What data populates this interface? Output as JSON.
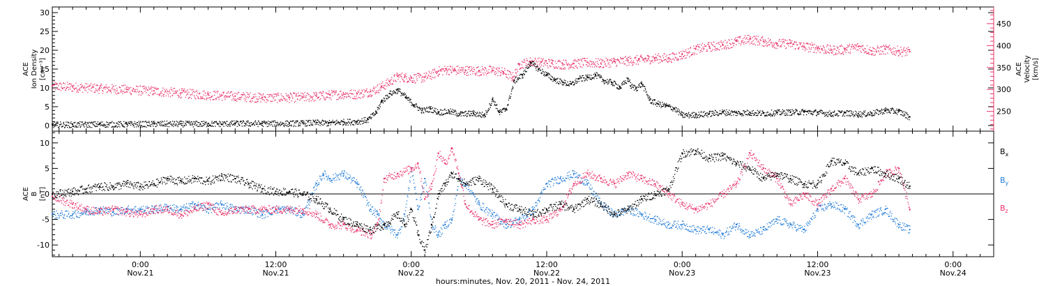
{
  "colors": {
    "axes": "#000000",
    "density": "#000000",
    "velocity": "#e8336a",
    "bx": "#000000",
    "by": "#1f7ad6",
    "bz": "#e8336a"
  },
  "xlabel": "hours:minutes, Nov. 20, 2011 - Nov. 24, 2011",
  "chart_data": [
    {
      "type": "scatter",
      "panel": "top",
      "x_range_hours": [
        -6.5,
        63.0
      ],
      "x_ticks": [
        {
          "t": 0,
          "time": "0:00",
          "date": "Nov.21"
        },
        {
          "t": 10,
          "time": "12:00",
          "date": "Nov.21"
        },
        {
          "t": 20,
          "time": "0:00",
          "date": "Nov.22"
        },
        {
          "t": 30,
          "time": "12:00",
          "date": "Nov.22"
        },
        {
          "t": 40,
          "time": "0:00",
          "date": "Nov.23"
        },
        {
          "t": 50,
          "time": "12:00",
          "date": "Nov.23"
        },
        {
          "t": 60,
          "time": "0:00",
          "date": "Nov.24"
        }
      ],
      "left_axis": {
        "label_lines": [
          "ACE",
          "Ion Density",
          "[cm⁻³]"
        ],
        "ylim": [
          -1.5,
          31.5
        ],
        "ticks": [
          0,
          5,
          10,
          15,
          20,
          25,
          30
        ],
        "tick_labels": [
          "0",
          "5",
          "10",
          "15",
          "20",
          "25",
          "30"
        ]
      },
      "right_axis": {
        "label_lines": [
          "ACE",
          "Velocity",
          "[km/s]"
        ],
        "ylim": [
          205,
          488
        ],
        "ticks": [
          250,
          300,
          350,
          400,
          450
        ],
        "tick_labels": [
          "250",
          "300",
          "350",
          "400",
          "450"
        ]
      },
      "series": [
        {
          "key": "density",
          "x": [
            -6.5,
            -5,
            -3,
            -1,
            1,
            3,
            5,
            7,
            9,
            11,
            12,
            13,
            13.9,
            14.1,
            15,
            16,
            16.8,
            17.4,
            17.8,
            18.4,
            19,
            19.6,
            20.2,
            20.8,
            21.4,
            22,
            22.8,
            23.6,
            24.6,
            25.4,
            26,
            26.5,
            27,
            27.6,
            28.2,
            28.8,
            29.4,
            30,
            30.6,
            31.2,
            31.8,
            32.4,
            33,
            33.6,
            34.2,
            34.8,
            35.4,
            36,
            36.2,
            36.6,
            37,
            37.6,
            38.2,
            38.8,
            39.4,
            40,
            41,
            42,
            43,
            44,
            45,
            46,
            47,
            48,
            49,
            50,
            51,
            52,
            53,
            54,
            55,
            56,
            56.8
          ],
          "y": [
            0.3,
            0.3,
            0.4,
            0.4,
            0.5,
            0.5,
            0.5,
            0.6,
            0.6,
            0.6,
            0.7,
            0.8,
            0.7,
            0.8,
            1.0,
            1.1,
            1.6,
            3.6,
            6.5,
            8.5,
            9.5,
            7.5,
            5.5,
            4.0,
            4.5,
            3.6,
            3.8,
            3.1,
            3.3,
            2.8,
            7.0,
            3.5,
            4.5,
            12.0,
            13.5,
            16.8,
            15.0,
            13.5,
            12.2,
            11.5,
            11.0,
            12.5,
            12.8,
            13.5,
            12.0,
            11.5,
            10.2,
            12.5,
            10.5,
            10.0,
            11.2,
            6.8,
            5.8,
            5.3,
            4.6,
            2.8,
            2.9,
            3.2,
            3.6,
            3.4,
            3.5,
            3.3,
            3.5,
            3.6,
            3.7,
            3.5,
            3.2,
            3.4,
            3.1,
            3.3,
            4.1,
            3.8,
            2.3
          ]
        },
        {
          "key": "velocity",
          "x": [
            -6.5,
            -5,
            -3,
            -1,
            1,
            3,
            5,
            7,
            9,
            11,
            12,
            13,
            14,
            15,
            16,
            17,
            17.8,
            18.4,
            19,
            19.5,
            20,
            21,
            22,
            22.6,
            23.2,
            24,
            25,
            26,
            26.8,
            27.5,
            28,
            28.8,
            29.6,
            30.4,
            31.2,
            32,
            33,
            34,
            35,
            36,
            36.8,
            37.5,
            38,
            39,
            40,
            41,
            42,
            43,
            44,
            45,
            46,
            47,
            48,
            49,
            50,
            51,
            52,
            53,
            54,
            55,
            56,
            56.8
          ],
          "y": [
            308,
            306,
            303,
            300,
            297,
            292,
            288,
            285,
            282,
            282,
            283,
            285,
            288,
            290,
            290,
            296,
            307,
            318,
            330,
            328,
            326,
            328,
            342,
            346,
            344,
            344,
            343,
            344,
            340,
            328,
            358,
            364,
            362,
            360,
            358,
            359,
            362,
            360,
            364,
            366,
            368,
            370,
            372,
            372,
            380,
            392,
            398,
            402,
            410,
            415,
            410,
            405,
            405,
            398,
            395,
            390,
            392,
            398,
            388,
            392,
            388,
            386
          ]
        }
      ]
    },
    {
      "type": "scatter",
      "panel": "bottom",
      "x_range_hours": [
        -6.5,
        63.0
      ],
      "x_ticks": [
        {
          "t": 0,
          "time": "0:00",
          "date": "Nov.21"
        },
        {
          "t": 10,
          "time": "12:00",
          "date": "Nov.21"
        },
        {
          "t": 20,
          "time": "0:00",
          "date": "Nov.22"
        },
        {
          "t": 30,
          "time": "12:00",
          "date": "Nov.22"
        },
        {
          "t": 40,
          "time": "0:00",
          "date": "Nov.23"
        },
        {
          "t": 50,
          "time": "12:00",
          "date": "Nov.23"
        },
        {
          "t": 60,
          "time": "0:00",
          "date": "Nov.24"
        }
      ],
      "left_axis": {
        "label_lines": [
          "ACE",
          "B",
          "[nT]"
        ],
        "ylim": [
          -12.3,
          12.3
        ],
        "ticks": [
          -10,
          -5,
          0,
          5,
          10
        ],
        "tick_labels": [
          "-10",
          "-5",
          "0",
          "5",
          "10"
        ]
      },
      "zero_line": 0,
      "legend": [
        {
          "key": "bx",
          "base": "B",
          "sub": "x"
        },
        {
          "key": "by",
          "base": "B",
          "sub": "y"
        },
        {
          "key": "bz",
          "base": "B",
          "sub": "z"
        }
      ],
      "series": [
        {
          "key": "bx",
          "x": [
            -6.5,
            -5,
            -4,
            -3,
            -2,
            -1,
            0,
            1,
            2,
            3,
            4,
            5,
            6,
            7,
            8,
            9,
            10,
            11,
            12,
            13,
            14,
            15,
            16,
            17,
            18,
            19,
            19.5,
            20,
            20.5,
            21,
            21.5,
            22,
            22.5,
            23,
            23.5,
            24,
            25,
            26,
            27,
            28,
            29,
            30,
            31,
            32,
            33,
            34,
            35,
            36,
            37,
            38,
            39,
            40,
            41,
            42,
            43,
            44,
            45,
            46,
            47,
            48,
            49,
            50,
            51,
            52,
            53,
            54,
            55,
            56,
            56.8
          ],
          "y": [
            0,
            0.5,
            1,
            1.5,
            1.5,
            2,
            1.5,
            2,
            3,
            2.5,
            3,
            2.5,
            3.5,
            3,
            2,
            1,
            0.5,
            0.5,
            0,
            -1,
            -3,
            -5,
            -6,
            -7,
            -6,
            -4,
            -6,
            -3,
            -8,
            -11,
            -6,
            0,
            2,
            4,
            3,
            2,
            3,
            1,
            -2,
            -3,
            -4,
            -3,
            -2,
            -3,
            -1,
            -2,
            -4,
            -3,
            -1,
            0,
            1,
            8,
            8.5,
            7,
            7.5,
            6,
            5,
            3,
            4,
            3,
            2,
            2,
            6.5,
            6,
            4,
            5,
            4,
            3,
            1.5
          ]
        },
        {
          "key": "by",
          "x": [
            -6.5,
            -5,
            -4,
            -3,
            -2,
            -1,
            0,
            1,
            2,
            3,
            4,
            5,
            6,
            7,
            8,
            9,
            10,
            11,
            12,
            13,
            13.5,
            14,
            15,
            16,
            17,
            17.5,
            18,
            19,
            19.5,
            20,
            20.5,
            21,
            21.5,
            22,
            22.5,
            23,
            23.5,
            24,
            25,
            26,
            27,
            28,
            29,
            30,
            31,
            32,
            33,
            34,
            35,
            36,
            37,
            38,
            39,
            40,
            41,
            42,
            43,
            44,
            45,
            46,
            47,
            48,
            49,
            50,
            51,
            52,
            53,
            54,
            55,
            56,
            56.8
          ],
          "y": [
            -4,
            -4,
            -3.5,
            -3,
            -3.5,
            -3,
            -3,
            -3,
            -2.5,
            -3,
            -2,
            -3,
            -2,
            -3,
            -3,
            -4,
            -3,
            -3,
            -4,
            2,
            4,
            3,
            4,
            2,
            -3,
            -4,
            -6,
            -8,
            -4,
            5,
            -3,
            3,
            -6,
            -8,
            -6,
            -5,
            3,
            2,
            -2,
            -4,
            -6,
            -5,
            -3,
            2,
            3,
            4,
            2,
            -2,
            -4,
            -3,
            -4,
            -5,
            -6,
            -6,
            -7,
            -7,
            -8,
            -6,
            -8,
            -7,
            -5,
            -6,
            -7,
            -3,
            -2,
            -3,
            -6,
            -4,
            -3,
            -6,
            -7
          ]
        },
        {
          "key": "bz",
          "x": [
            -6.5,
            -5,
            -4,
            -3,
            -2,
            -1,
            0,
            1,
            2,
            3,
            4,
            5,
            6,
            7,
            8,
            9,
            10,
            11,
            12,
            13,
            14,
            15,
            16,
            17,
            17.5,
            18,
            19,
            20,
            20.5,
            21,
            21.5,
            22,
            22.5,
            23,
            23.5,
            24,
            25,
            26,
            27,
            28,
            29,
            30,
            31,
            32,
            33,
            34,
            35,
            36,
            37,
            38,
            39,
            40,
            41,
            42,
            43,
            44,
            45,
            46,
            47,
            48,
            49,
            50,
            51,
            52,
            53,
            54,
            55,
            56,
            56.8
          ],
          "y": [
            -0.5,
            -2,
            -3,
            -3.5,
            -3,
            -3.5,
            -4,
            -3,
            -3,
            -4,
            -3,
            -2,
            -4,
            -3,
            -3,
            -3,
            -3,
            -3,
            -3,
            -4,
            -6,
            -6,
            -7,
            -8,
            -6,
            3,
            4,
            5,
            6,
            -1,
            2,
            8,
            6,
            9,
            4,
            -2,
            -5,
            -6,
            -5,
            -6,
            -5,
            -5,
            -3,
            2,
            4,
            3,
            2,
            4,
            3,
            2,
            0,
            -2,
            -3,
            -2,
            0,
            2,
            8,
            5,
            3,
            -2,
            0,
            -2,
            1,
            3,
            -1,
            0,
            4,
            5,
            -3
          ]
        }
      ]
    }
  ]
}
